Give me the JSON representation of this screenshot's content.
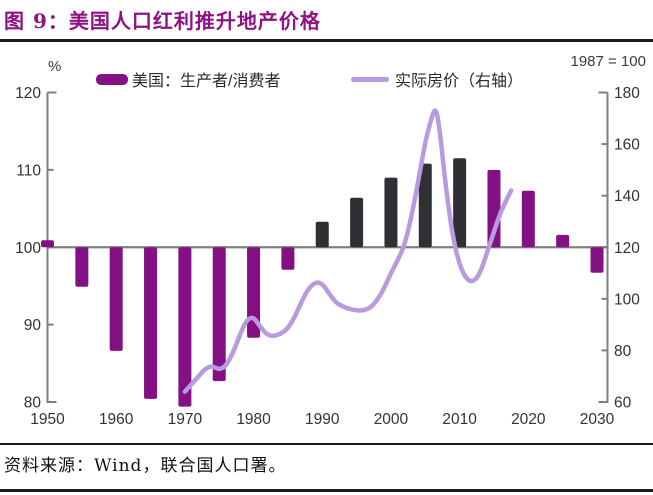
{
  "figure": {
    "title": "图 9：美国人口红利推升地产价格",
    "source": "资料来源：Wind，联合国人口署。"
  },
  "axes": {
    "left_unit": "%",
    "right_unit": "1987 = 100"
  },
  "legend": {
    "bar_label": "美国：生产者/消费者",
    "line_label": "实际房价（右轴）"
  },
  "colors": {
    "title": "#8d1283",
    "bar_purple": "#841184",
    "bar_dark": "#302f33",
    "line": "#b89ade",
    "axis": "#7f7f7f",
    "text": "#333333",
    "rule": "#1c1c1c"
  },
  "chart_data": {
    "type": "bar+line",
    "title": "美国人口红利推升地产价格",
    "x_axis": {
      "ticks": [
        1950,
        1960,
        1970,
        1980,
        1990,
        2000,
        2010,
        2020,
        2030
      ],
      "range": [
        1950,
        2030
      ]
    },
    "left_axis": {
      "unit": "%",
      "ticks": [
        120,
        110,
        100,
        90,
        80
      ],
      "range": [
        80,
        120
      ],
      "baseline": 100
    },
    "right_axis": {
      "unit": "1987 = 100",
      "ticks": [
        180,
        160,
        140,
        120,
        100,
        80,
        60
      ],
      "range": [
        60,
        180
      ]
    },
    "bar_series": {
      "name": "美国：生产者/消费者",
      "axis": "left",
      "points": [
        {
          "year": 1950,
          "value": 100.9,
          "color": "purple"
        },
        {
          "year": 1955,
          "value": 94.9,
          "color": "purple"
        },
        {
          "year": 1960,
          "value": 86.6,
          "color": "purple"
        },
        {
          "year": 1965,
          "value": 80.4,
          "color": "purple"
        },
        {
          "year": 1970,
          "value": 79.4,
          "color": "purple"
        },
        {
          "year": 1975,
          "value": 82.7,
          "color": "purple"
        },
        {
          "year": 1980,
          "value": 88.3,
          "color": "purple"
        },
        {
          "year": 1985,
          "value": 97.1,
          "color": "purple"
        },
        {
          "year": 1990,
          "value": 103.3,
          "color": "dark"
        },
        {
          "year": 1995,
          "value": 106.4,
          "color": "dark"
        },
        {
          "year": 2000,
          "value": 109.0,
          "color": "dark"
        },
        {
          "year": 2005,
          "value": 110.8,
          "color": "dark"
        },
        {
          "year": 2010,
          "value": 111.5,
          "color": "dark"
        },
        {
          "year": 2015,
          "value": 110.0,
          "color": "purple"
        },
        {
          "year": 2020,
          "value": 107.3,
          "color": "purple"
        },
        {
          "year": 2025,
          "value": 101.6,
          "color": "purple"
        },
        {
          "year": 2030,
          "value": 96.7,
          "color": "purple"
        }
      ]
    },
    "line_series": {
      "name": "实际房价（右轴）",
      "axis": "right",
      "points": [
        [
          1970,
          64
        ],
        [
          1971,
          67
        ],
        [
          1972,
          70
        ],
        [
          1973,
          73
        ],
        [
          1974,
          74
        ],
        [
          1975,
          72.5
        ],
        [
          1976,
          74
        ],
        [
          1977,
          79
        ],
        [
          1978,
          86
        ],
        [
          1979,
          92
        ],
        [
          1980,
          93
        ],
        [
          1981,
          89
        ],
        [
          1982,
          86
        ],
        [
          1983,
          85.5
        ],
        [
          1984,
          86.5
        ],
        [
          1985,
          88.5
        ],
        [
          1986,
          93
        ],
        [
          1987,
          99
        ],
        [
          1988,
          104
        ],
        [
          1989,
          106.5
        ],
        [
          1990,
          106
        ],
        [
          1991,
          102
        ],
        [
          1992,
          98.5
        ],
        [
          1993,
          97
        ],
        [
          1994,
          96
        ],
        [
          1995,
          95.5
        ],
        [
          1996,
          95.5
        ],
        [
          1997,
          96.5
        ],
        [
          1998,
          99.5
        ],
        [
          1999,
          104
        ],
        [
          2000,
          110
        ],
        [
          2001,
          115
        ],
        [
          2002,
          121
        ],
        [
          2003,
          132
        ],
        [
          2004,
          146
        ],
        [
          2005,
          161
        ],
        [
          2006,
          171
        ],
        [
          2006.5,
          174
        ],
        [
          2007,
          168
        ],
        [
          2008,
          143
        ],
        [
          2009,
          124
        ],
        [
          2010,
          113
        ],
        [
          2011,
          107.5
        ],
        [
          2012,
          106.5
        ],
        [
          2013,
          110
        ],
        [
          2014,
          118
        ],
        [
          2015,
          126
        ],
        [
          2016,
          134
        ],
        [
          2017.5,
          142
        ]
      ]
    }
  }
}
